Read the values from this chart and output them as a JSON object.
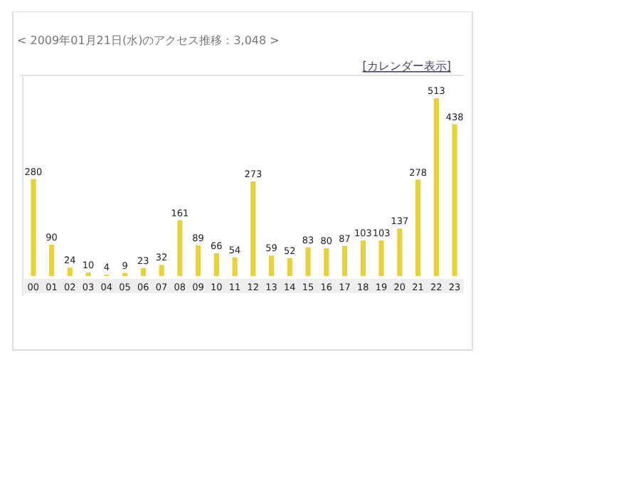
{
  "chart_data": {
    "type": "bar",
    "title": "< 2009年01月21日(水)のアクセス推移：3,048 >",
    "annotations": [
      "[カレンダー表示]"
    ],
    "categories": [
      "00",
      "01",
      "02",
      "03",
      "04",
      "05",
      "06",
      "07",
      "08",
      "09",
      "10",
      "11",
      "12",
      "13",
      "14",
      "15",
      "16",
      "17",
      "18",
      "19",
      "20",
      "21",
      "22",
      "23"
    ],
    "values": [
      280,
      90,
      24,
      10,
      4,
      9,
      23,
      32,
      161,
      89,
      66,
      54,
      273,
      59,
      52,
      83,
      80,
      87,
      103,
      103,
      137,
      278,
      513,
      438
    ],
    "color": "#e6d23c",
    "data_labels": true
  }
}
